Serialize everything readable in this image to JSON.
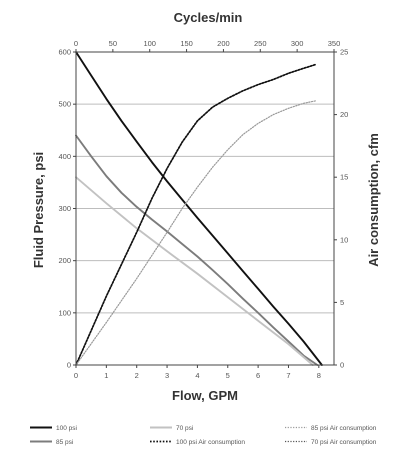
{
  "chart_data": {
    "type": "line",
    "title": "",
    "xlabel": "Flow, GPM",
    "top_xlabel": "Cycles/min",
    "ylabel": "Fluid Pressure, psi",
    "right_ylabel": "Air consumption, cfm",
    "xlim": [
      0,
      8.5
    ],
    "ylim": [
      0,
      600
    ],
    "top_xlim": [
      0,
      350
    ],
    "right_ylim": [
      0,
      25
    ],
    "x_ticks": [
      "0",
      "1",
      "2",
      "3",
      "4",
      "5",
      "6",
      "7",
      "8"
    ],
    "y_ticks": [
      "0",
      "100",
      "200",
      "300",
      "400",
      "500",
      "600"
    ],
    "top_x_ticks": [
      "0",
      "50",
      "100",
      "150",
      "200",
      "250",
      "300",
      "350"
    ],
    "right_y_ticks": [
      "0",
      "5",
      "10",
      "15",
      "20",
      "25"
    ],
    "grid": true,
    "legend_position": "bottom",
    "series": [
      {
        "name": "100 psi",
        "axis": "left",
        "style": "solid",
        "color": "#111111",
        "width": 1.9,
        "x": [
          0,
          0.5,
          1,
          1.5,
          2,
          2.5,
          3,
          3.5,
          4,
          4.5,
          5,
          5.5,
          6,
          6.5,
          7,
          7.5,
          8.1
        ],
        "y": [
          600,
          555,
          510,
          468,
          428,
          389,
          352,
          317,
          282,
          248,
          214,
          180,
          146,
          112,
          79,
          45,
          0
        ]
      },
      {
        "name": "85 psi",
        "axis": "left",
        "style": "solid",
        "color": "#7c7c7c",
        "width": 1.9,
        "x": [
          0,
          0.5,
          1,
          1.5,
          2,
          2.5,
          3,
          3.5,
          4,
          4.5,
          5,
          5.5,
          6,
          6.5,
          7,
          7.5,
          7.95
        ],
        "y": [
          440,
          400,
          362,
          330,
          303,
          279,
          256,
          232,
          208,
          182,
          155,
          127,
          100,
          72,
          45,
          18,
          0
        ]
      },
      {
        "name": "70 psi",
        "axis": "left",
        "style": "solid",
        "color": "#c2c2c2",
        "width": 1.9,
        "x": [
          0,
          1,
          2,
          3,
          4,
          5,
          6,
          7,
          7.8
        ],
        "y": [
          360,
          310,
          262,
          218,
          175,
          130,
          85,
          40,
          0
        ]
      },
      {
        "name": "100 psi Air consumption",
        "axis": "right",
        "style": "dotted",
        "color": "#111111",
        "width": 1.7,
        "x": [
          0,
          1,
          2,
          2.5,
          3,
          3.5,
          4,
          4.5,
          5,
          5.5,
          6,
          6.5,
          7,
          7.5,
          7.9
        ],
        "y": [
          0,
          5.5,
          10.6,
          13.3,
          15.7,
          17.8,
          19.5,
          20.6,
          21.3,
          21.9,
          22.4,
          22.8,
          23.3,
          23.7,
          24.0
        ]
      },
      {
        "name": "85 psi Air consumption",
        "axis": "right",
        "style": "dotted",
        "color": "#999999",
        "width": 1.2,
        "x": [
          0,
          1,
          2,
          3,
          3.5,
          4,
          4.5,
          5,
          5.5,
          6,
          6.5,
          7,
          7.5,
          7.9
        ],
        "y": [
          0,
          3.4,
          6.9,
          10.6,
          12.5,
          14.2,
          15.8,
          17.2,
          18.4,
          19.3,
          20.0,
          20.5,
          20.9,
          21.1
        ]
      }
    ],
    "legend": [
      {
        "label": "100 psi",
        "series": 0
      },
      {
        "label": "70 psi",
        "series": 2
      },
      {
        "label": "85 psi Air consumption",
        "series": 4
      },
      {
        "label": "85 psi",
        "series": 1
      },
      {
        "label": "100 psi Air consumption",
        "series": 3
      },
      {
        "label": "70 psi Air consumption",
        "series": -1
      }
    ]
  }
}
